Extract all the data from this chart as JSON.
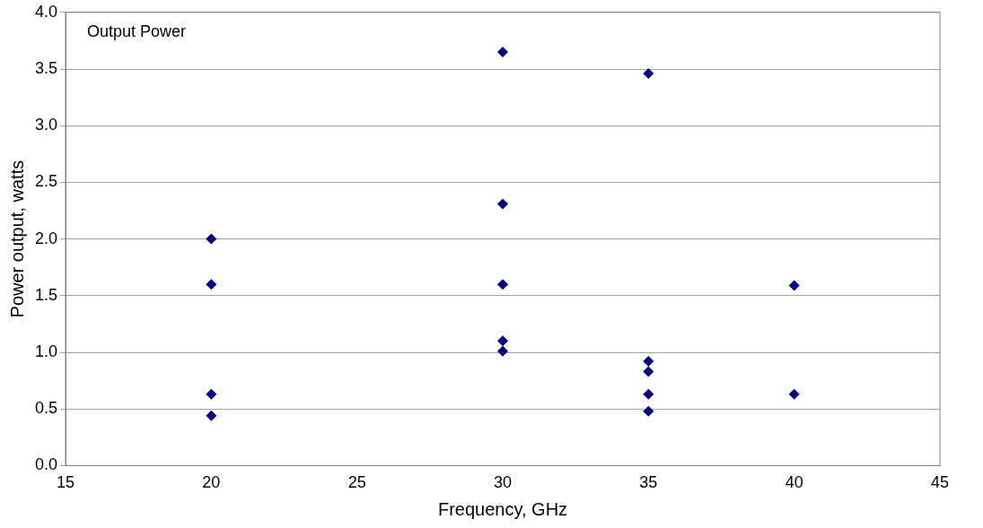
{
  "chart_data": {
    "type": "scatter",
    "title": "Output Power",
    "xlabel": "Frequency, GHz",
    "ylabel": "Power output, watts",
    "x": [
      20,
      20,
      20,
      20,
      30,
      30,
      30,
      30,
      30,
      35,
      35,
      35,
      35,
      35,
      40,
      40
    ],
    "series": [
      {
        "color": "#000080",
        "values": [
          2.0,
          1.6,
          0.63,
          0.44,
          3.65,
          2.31,
          1.6,
          1.1,
          1.01,
          3.46,
          0.92,
          0.83,
          0.63,
          0.48,
          1.59,
          0.63
        ]
      }
    ],
    "xlim": [
      15,
      45
    ],
    "xticks": [
      15,
      20,
      25,
      30,
      35,
      40,
      45
    ],
    "ylim": [
      0,
      4
    ],
    "yticks": [
      {
        "value": 0,
        "label": "0.0"
      },
      {
        "value": 0.5,
        "label": "0.5"
      },
      {
        "value": 1,
        "label": "1.0"
      },
      {
        "value": 1.5,
        "label": "1.5"
      },
      {
        "value": 2,
        "label": "2.0"
      },
      {
        "value": 2.5,
        "label": "2.5"
      },
      {
        "value": 3,
        "label": "3.0"
      },
      {
        "value": 3.5,
        "label": "3.5"
      },
      {
        "value": 4,
        "label": "4.0"
      }
    ],
    "grid": "y",
    "marker": "diamond",
    "legend": false
  }
}
